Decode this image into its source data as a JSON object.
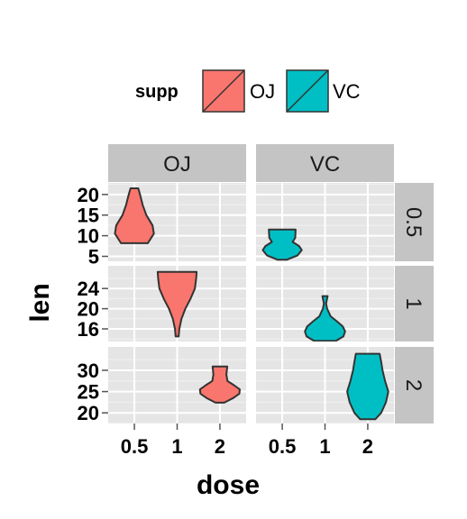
{
  "chart_data": {
    "type": "violin",
    "xlabel": "dose",
    "ylabel": "len",
    "x_categories": [
      "0.5",
      "1",
      "2"
    ],
    "facet_cols": [
      "OJ",
      "VC"
    ],
    "facet_rows": [
      "0.5",
      "1",
      "2"
    ],
    "legend": {
      "title": "supp",
      "placement": "top",
      "items": [
        {
          "label": "OJ",
          "color": "#F8766D"
        },
        {
          "label": "VC",
          "color": "#00BFC4"
        }
      ]
    },
    "rows": [
      {
        "label": "0.5",
        "ylim": [
          3.8,
          22.8
        ],
        "ticks": [
          5,
          10,
          15,
          20
        ]
      },
      {
        "label": "1",
        "ylim": [
          13.5,
          28.5
        ],
        "ticks": [
          16,
          20,
          24
        ]
      },
      {
        "label": "2",
        "ylim": [
          17.5,
          35.5
        ],
        "ticks": [
          20,
          25,
          30
        ]
      }
    ],
    "violins": [
      {
        "supp": "OJ",
        "dose": "0.5",
        "min": 8.2,
        "max": 21.5,
        "profile": [
          [
            8.2,
            0.62
          ],
          [
            10.5,
            0.9
          ],
          [
            12.5,
            0.84
          ],
          [
            15,
            0.55
          ],
          [
            17.5,
            0.38
          ],
          [
            20,
            0.26
          ],
          [
            21.5,
            0.18
          ]
        ]
      },
      {
        "supp": "VC",
        "dose": "0.5",
        "min": 4.2,
        "max": 11.5,
        "profile": [
          [
            4.2,
            0.22
          ],
          [
            5.2,
            0.7
          ],
          [
            6.5,
            0.9
          ],
          [
            7.5,
            0.78
          ],
          [
            8.5,
            0.48
          ],
          [
            9.5,
            0.6
          ],
          [
            11.5,
            0.62
          ]
        ]
      },
      {
        "supp": "OJ",
        "dose": "1",
        "min": 14.5,
        "max": 27.3,
        "profile": [
          [
            14.5,
            0.07
          ],
          [
            16,
            0.1
          ],
          [
            18,
            0.2
          ],
          [
            20,
            0.38
          ],
          [
            22,
            0.62
          ],
          [
            24,
            0.82
          ],
          [
            26,
            0.88
          ],
          [
            27.3,
            0.9
          ]
        ]
      },
      {
        "supp": "VC",
        "dose": "1",
        "min": 13.6,
        "max": 22.5,
        "profile": [
          [
            13.6,
            0.5
          ],
          [
            14.5,
            0.85
          ],
          [
            15.5,
            0.93
          ],
          [
            16.5,
            0.82
          ],
          [
            17.5,
            0.55
          ],
          [
            18.5,
            0.26
          ],
          [
            20,
            0.1
          ],
          [
            21,
            0.05
          ],
          [
            22.5,
            0.12
          ]
        ]
      },
      {
        "supp": "OJ",
        "dose": "2",
        "min": 22.4,
        "max": 30.9,
        "profile": [
          [
            22.4,
            0.2
          ],
          [
            23.5,
            0.62
          ],
          [
            24.5,
            0.9
          ],
          [
            25.5,
            0.92
          ],
          [
            26.5,
            0.65
          ],
          [
            27.5,
            0.35
          ],
          [
            29,
            0.3
          ],
          [
            30.9,
            0.34
          ]
        ]
      },
      {
        "supp": "VC",
        "dose": "2",
        "min": 18.5,
        "max": 33.9,
        "profile": [
          [
            18.5,
            0.35
          ],
          [
            20,
            0.62
          ],
          [
            22.5,
            0.84
          ],
          [
            25,
            0.95
          ],
          [
            27.5,
            0.8
          ],
          [
            30,
            0.68
          ],
          [
            32,
            0.62
          ],
          [
            33.9,
            0.55
          ]
        ]
      }
    ]
  }
}
